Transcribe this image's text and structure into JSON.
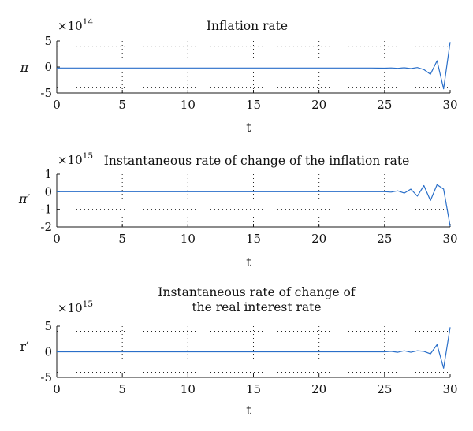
{
  "colors": {
    "series": "#2a6fc9",
    "axis": "#1a1a1a"
  },
  "chart_data": [
    {
      "type": "line",
      "title": [
        "Inflation rate"
      ],
      "multiplier_base": "×10",
      "multiplier_exp": "14",
      "xlabel": "t",
      "ylabel": "π",
      "xlim": [
        0,
        30
      ],
      "ylim": [
        -5,
        5
      ],
      "xticks": [
        "0",
        "5",
        "10",
        "15",
        "20",
        "25",
        "30"
      ],
      "yticks": [
        "5",
        "0",
        "-5"
      ],
      "ytick_values": [
        5,
        0,
        -5
      ],
      "grid_values": [
        4,
        -4
      ],
      "grid_x": [
        5,
        10,
        15,
        20,
        25
      ],
      "grid": true,
      "series": [
        {
          "x": [
            0,
            24,
            25,
            25.5,
            26,
            26.5,
            27,
            27.5,
            28,
            28.5,
            29,
            29.5,
            30
          ],
          "y": [
            -0.2,
            -0.2,
            -0.22,
            -0.18,
            -0.25,
            -0.15,
            -0.3,
            -0.1,
            -0.5,
            -1.4,
            1.2,
            -4.2,
            4.8
          ]
        }
      ]
    },
    {
      "type": "line",
      "title": [
        "Instantaneous rate of change of the inflation rate"
      ],
      "multiplier_base": "×10",
      "multiplier_exp": "15",
      "xlabel": "t",
      "ylabel": "π′",
      "xlim": [
        0,
        30
      ],
      "ylim": [
        -2,
        1
      ],
      "xticks": [
        "0",
        "5",
        "10",
        "15",
        "20",
        "25",
        "30"
      ],
      "yticks": [
        "1",
        "0",
        "-1",
        "-2"
      ],
      "ytick_values": [
        1,
        0,
        -1,
        -2
      ],
      "grid_values": [
        -1
      ],
      "grid_x": [
        5,
        10,
        15,
        20,
        25
      ],
      "grid": true,
      "series": [
        {
          "x": [
            0,
            25,
            25.5,
            26,
            26.5,
            27,
            27.5,
            28,
            28.5,
            29,
            29.5,
            30
          ],
          "y": [
            0,
            0,
            -0.02,
            0.05,
            -0.08,
            0.15,
            -0.25,
            0.35,
            -0.5,
            0.4,
            0.15,
            -1.95
          ]
        }
      ]
    },
    {
      "type": "line",
      "title": [
        "Instantaneous rate of change of",
        "the real interest rate"
      ],
      "multiplier_base": "×10",
      "multiplier_exp": "15",
      "xlabel": "t",
      "ylabel": "r′",
      "xlim": [
        0,
        30
      ],
      "ylim": [
        -5,
        5
      ],
      "xticks": [
        "0",
        "5",
        "10",
        "15",
        "20",
        "25",
        "30"
      ],
      "yticks": [
        "5",
        "0",
        "-5"
      ],
      "ytick_values": [
        5,
        0,
        -5
      ],
      "grid_values": [
        4,
        -4
      ],
      "grid_x": [
        5,
        10,
        15,
        20,
        25
      ],
      "grid": true,
      "series": [
        {
          "x": [
            0,
            25,
            25.5,
            26,
            26.5,
            27,
            27.5,
            28,
            28.5,
            29,
            29.5,
            30
          ],
          "y": [
            0,
            0,
            0.1,
            -0.1,
            0.2,
            -0.1,
            0.2,
            0.1,
            -0.4,
            1.4,
            -3.2,
            4.8
          ]
        }
      ]
    }
  ]
}
